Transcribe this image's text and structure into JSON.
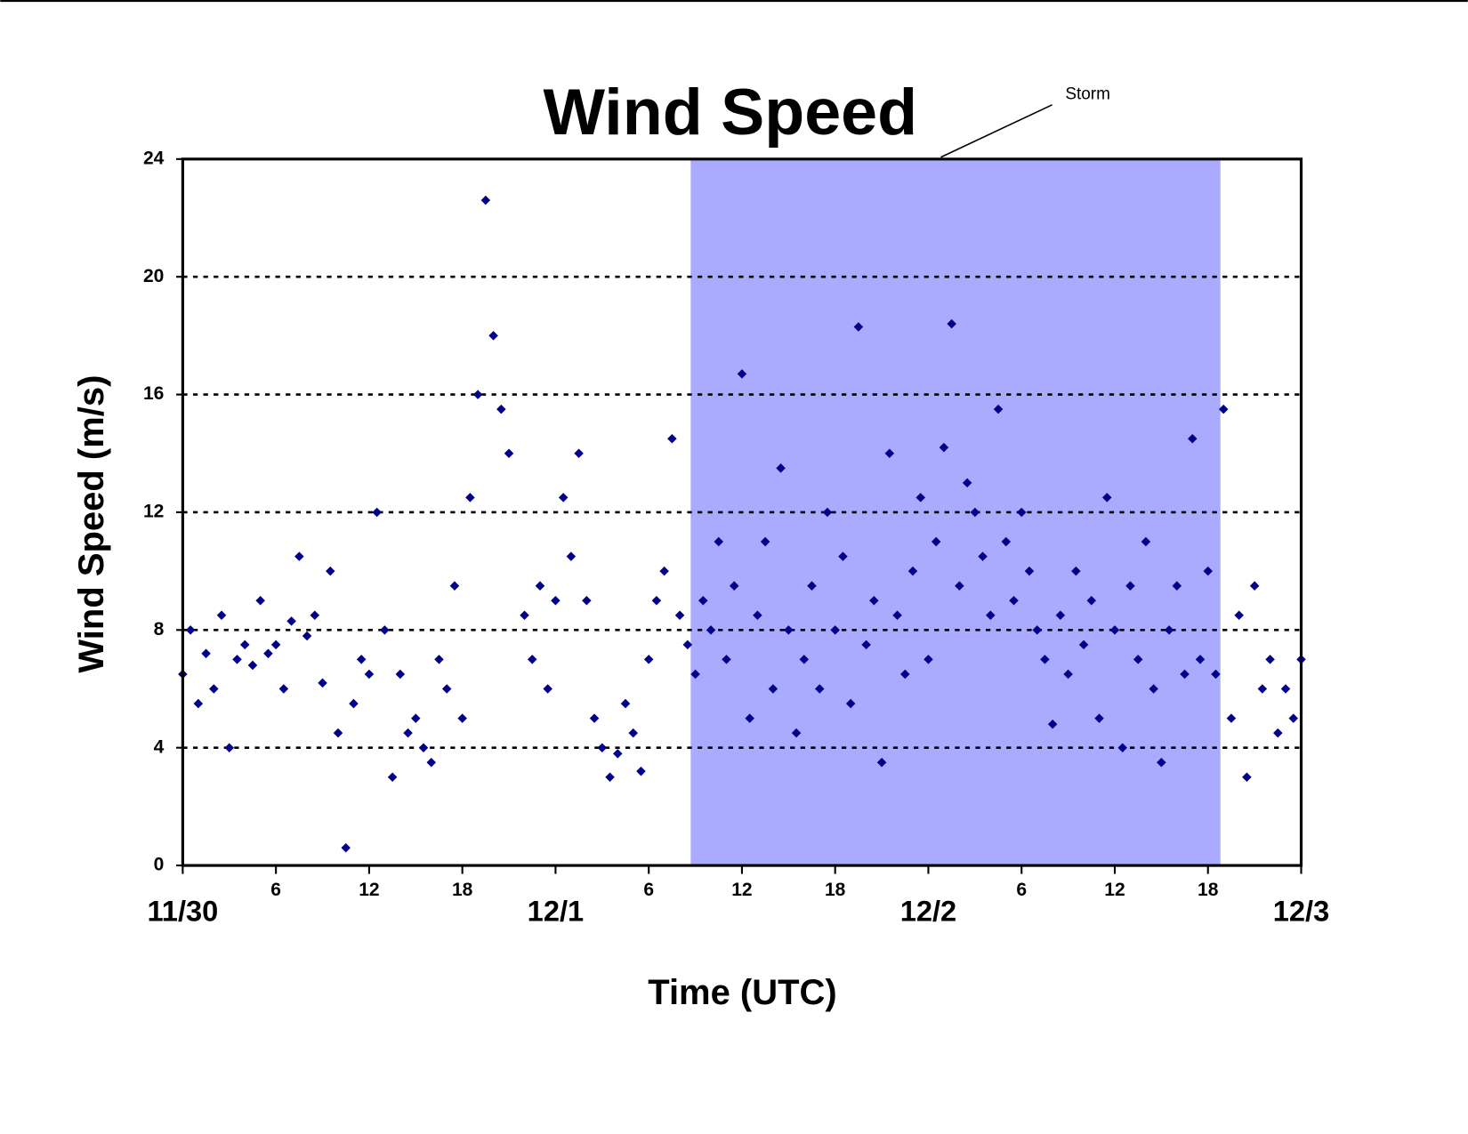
{
  "chart_data": {
    "type": "scatter",
    "title": "Wind Speed",
    "x_label": "Time (UTC)",
    "y_label": "Wind Speed (m/s)",
    "annotation": "Storm",
    "storm_period": [
      32.7,
      66.8
    ],
    "storm_color": "#aaaaff",
    "grid": true,
    "xlim": [
      0,
      72
    ],
    "ylim": [
      0,
      24
    ],
    "yticks": [
      0,
      4,
      8,
      12,
      16,
      20,
      24
    ],
    "xticks": [
      {
        "value": 0,
        "label": "11/30"
      },
      6,
      12,
      18,
      {
        "value": 24,
        "label": "12/1"
      },
      {
        "value": 30,
        "label": "6"
      },
      {
        "value": 36,
        "label": "12"
      },
      {
        "value": 42,
        "label": "18"
      },
      {
        "value": 48,
        "label": "12/2"
      },
      {
        "value": 54,
        "label": "6"
      },
      {
        "value": 60,
        "label": "12"
      },
      {
        "value": 66,
        "label": "18"
      },
      {
        "value": 72,
        "label": "12/3"
      }
    ],
    "series": [
      {
        "color": "#00008b",
        "x": [
          0,
          0.5,
          1,
          1.5,
          2,
          2.5,
          3,
          3.5,
          4,
          4.5,
          5,
          5.5,
          6,
          6.5,
          7,
          7.5,
          8,
          8.5,
          9,
          9.5,
          10,
          10.5,
          11,
          11.5,
          12,
          12.5,
          13,
          13.5,
          14,
          14.5,
          15,
          15.5,
          16,
          16.5,
          17,
          17.5,
          18,
          18.5,
          19,
          19.5,
          20,
          20.5,
          21,
          22,
          22.5,
          23,
          23.5,
          24,
          24.5,
          25,
          25.5,
          26,
          26.5,
          27,
          27.5,
          28,
          28.5,
          29,
          29.5,
          30,
          30.5,
          31,
          31.5,
          32,
          32.5,
          33,
          33.5,
          34,
          34.5,
          35,
          35.5,
          36,
          36.5,
          37,
          37.5,
          38,
          38.5,
          39,
          39.5,
          40,
          40.5,
          41,
          41.5,
          42,
          42.5,
          43,
          43.5,
          44,
          44.5,
          45,
          45.5,
          46,
          46.5,
          47,
          47.5,
          48,
          48.5,
          49,
          49.5,
          50,
          50.5,
          51,
          51.5,
          52,
          52.5,
          53,
          53.5,
          54,
          54.5,
          55,
          55.5,
          56,
          56.5,
          57,
          57.5,
          58,
          58.5,
          59,
          59.5,
          60,
          60.5,
          61,
          61.5,
          62,
          62.5,
          63,
          63.5,
          64,
          64.5,
          65,
          65.5,
          66,
          66.5,
          67,
          67.5,
          68,
          68.5,
          69,
          69.5,
          70,
          70.5,
          71,
          71.5,
          72
        ],
        "values": [
          6.5,
          8,
          5.5,
          7.2,
          6,
          8.5,
          4,
          7,
          7.5,
          6.8,
          9,
          7.2,
          7.5,
          6,
          8.3,
          10.5,
          7.8,
          8.5,
          6.2,
          10,
          4.5,
          0.6,
          5.5,
          7,
          6.5,
          12,
          8,
          3,
          6.5,
          4.5,
          5,
          4,
          3.5,
          7,
          6,
          9.5,
          5,
          12.5,
          16,
          22.6,
          18,
          15.5,
          14,
          8.5,
          7,
          9.5,
          6,
          9,
          12.5,
          10.5,
          14,
          9,
          5,
          4,
          3,
          3.8,
          5.5,
          4.5,
          3.2,
          7,
          9,
          10,
          14.5,
          8.5,
          7.5,
          6.5,
          9,
          8,
          11,
          7,
          9.5,
          16.7,
          5,
          8.5,
          11,
          6,
          13.5,
          8,
          4.5,
          7,
          9.5,
          6,
          12,
          8,
          10.5,
          5.5,
          18.3,
          7.5,
          9,
          3.5,
          14,
          8.5,
          6.5,
          10,
          12.5,
          7,
          11,
          14.2,
          18.4,
          9.5,
          13,
          12,
          10.5,
          8.5,
          15.5,
          11,
          9,
          12,
          10,
          8,
          7,
          4.8,
          8.5,
          6.5,
          10,
          7.5,
          9,
          5,
          12.5,
          8,
          4,
          9.5,
          7,
          11,
          6,
          3.5,
          8,
          9.5,
          6.5,
          14.5,
          7,
          10,
          6.5,
          15.5,
          5,
          8.5,
          3,
          9.5,
          6,
          7,
          4.5,
          6,
          5,
          7
        ]
      }
    ]
  }
}
